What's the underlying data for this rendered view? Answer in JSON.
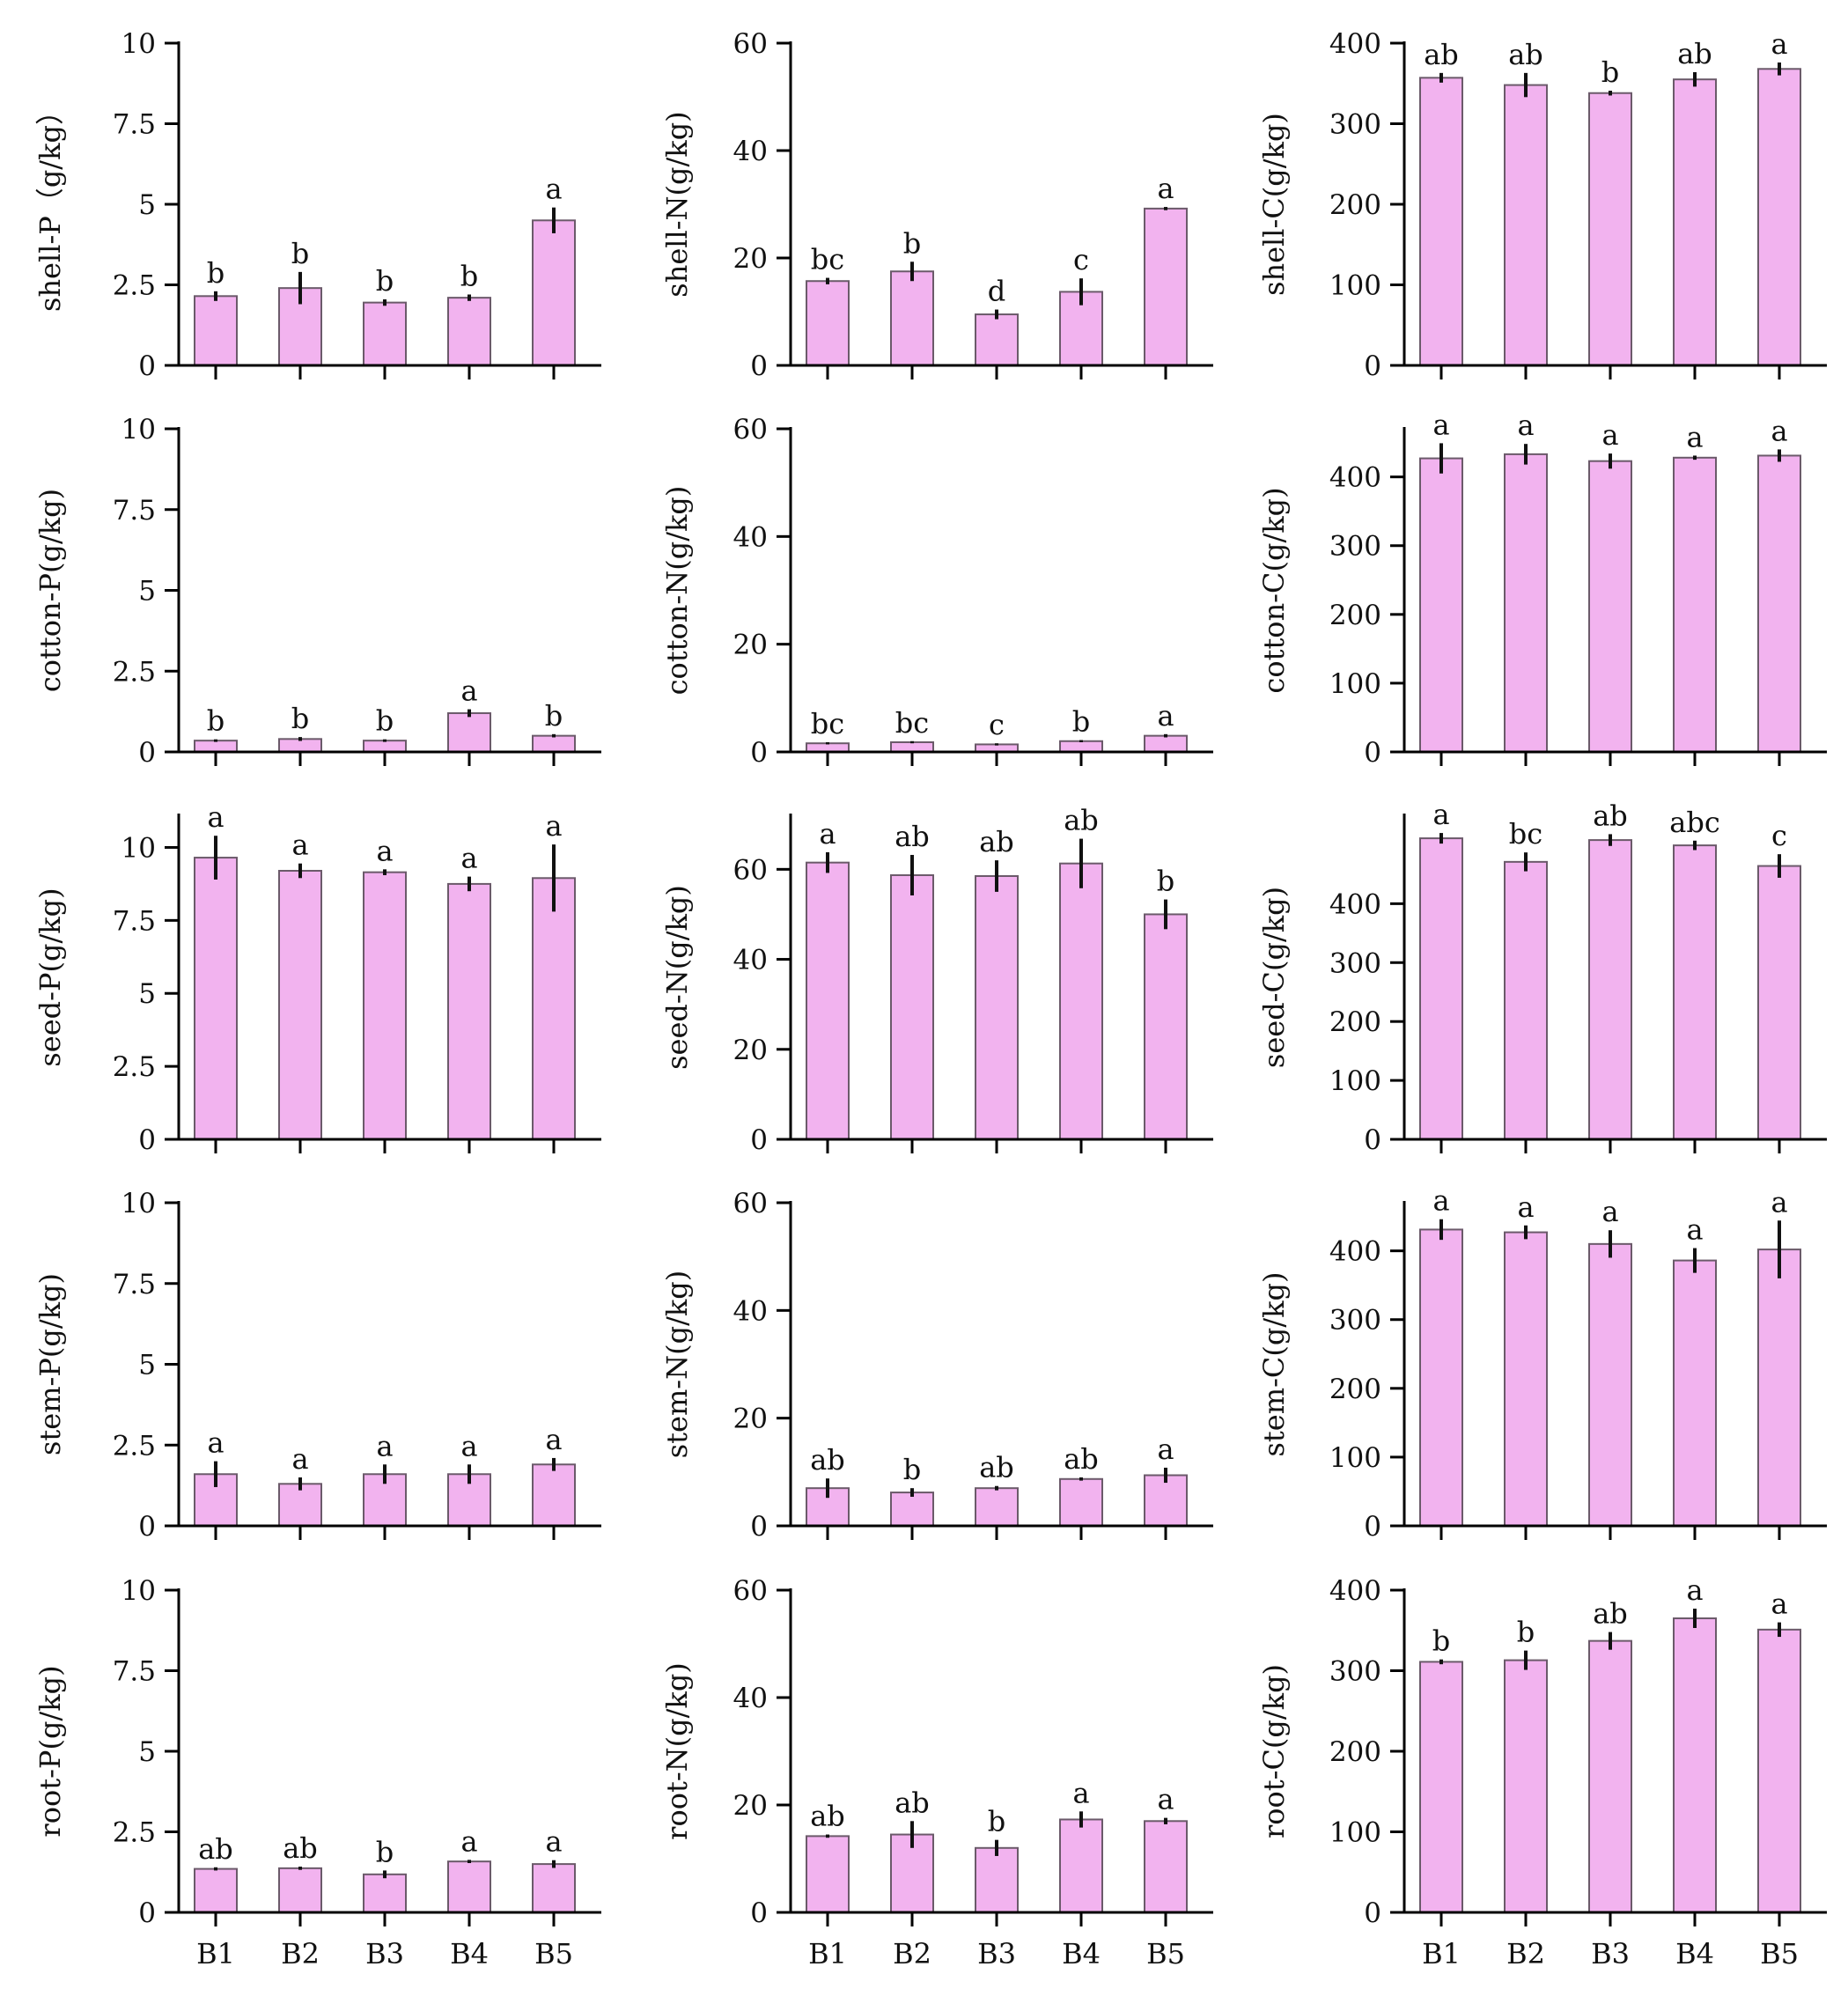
{
  "style": {
    "bar_fill": "#f2b3ef",
    "bar_stroke": "#6b5a6a",
    "axis_color": "#000000",
    "errorbar_color": "#111111"
  },
  "chart_data": [
    {
      "type": "bar",
      "ylabel": "shell-P（g/kg）",
      "yticks": [
        0,
        2.5,
        5,
        7.5,
        10
      ],
      "ytick_labels": [
        "0",
        "2.5",
        "5",
        "7.5",
        "10"
      ],
      "ylim": [
        0,
        10
      ],
      "categories": [
        "B1",
        "B2",
        "B3",
        "B4",
        "B5"
      ],
      "values": [
        2.15,
        2.4,
        1.95,
        2.1,
        4.5
      ],
      "errors": [
        0.15,
        0.5,
        0.1,
        0.1,
        0.4
      ],
      "letters": [
        "b",
        "b",
        "b",
        "b",
        "a"
      ],
      "show_xticklabels": false
    },
    {
      "type": "bar",
      "ylabel": "shell-N(g/kg)",
      "yticks": [
        0,
        20,
        40,
        60
      ],
      "ytick_labels": [
        "0",
        "20",
        "40",
        "60"
      ],
      "ylim": [
        0,
        60
      ],
      "categories": [
        "B1",
        "B2",
        "B3",
        "B4",
        "B5"
      ],
      "values": [
        15.7,
        17.5,
        9.5,
        13.7,
        29.2
      ],
      "errors": [
        0.6,
        1.8,
        0.9,
        2.5,
        0.3
      ],
      "letters": [
        "bc",
        "b",
        "d",
        "c",
        "a"
      ],
      "show_xticklabels": false
    },
    {
      "type": "bar",
      "ylabel": "shell-C(g/kg)",
      "yticks": [
        0,
        100,
        200,
        300,
        400
      ],
      "ytick_labels": [
        "0",
        "100",
        "200",
        "300",
        "400"
      ],
      "ylim": [
        0,
        400
      ],
      "categories": [
        "B1",
        "B2",
        "B3",
        "B4",
        "B5"
      ],
      "values": [
        357,
        348,
        338,
        355,
        368
      ],
      "errors": [
        6,
        15,
        3,
        9,
        8
      ],
      "letters": [
        "ab",
        "ab",
        "b",
        "ab",
        "a"
      ],
      "show_xticklabels": false
    },
    {
      "type": "bar",
      "ylabel": "cotton-P(g/kg)",
      "yticks": [
        0,
        2.5,
        5,
        7.5,
        10
      ],
      "ytick_labels": [
        "0",
        "2.5",
        "5",
        "7.5",
        "10"
      ],
      "ylim": [
        0,
        10
      ],
      "categories": [
        "B1",
        "B2",
        "B3",
        "B4",
        "B5"
      ],
      "values": [
        0.35,
        0.4,
        0.35,
        1.2,
        0.5
      ],
      "errors": [
        0.04,
        0.06,
        0.04,
        0.12,
        0.05
      ],
      "letters": [
        "b",
        "b",
        "b",
        "a",
        "b"
      ],
      "show_xticklabels": false
    },
    {
      "type": "bar",
      "ylabel": "cotton-N(g/kg)",
      "yticks": [
        0,
        20,
        40,
        60
      ],
      "ytick_labels": [
        "0",
        "20",
        "40",
        "60"
      ],
      "ylim": [
        0,
        60
      ],
      "categories": [
        "B1",
        "B2",
        "B3",
        "B4",
        "B5"
      ],
      "values": [
        1.6,
        1.8,
        1.4,
        2.0,
        3.0
      ],
      "errors": [
        0.2,
        0.2,
        0.2,
        0.2,
        0.3
      ],
      "letters": [
        "bc",
        "bc",
        "c",
        "b",
        "a"
      ],
      "show_xticklabels": false
    },
    {
      "type": "bar",
      "ylabel": "cotton-C(g/kg)",
      "yticks": [
        0,
        100,
        200,
        300,
        400
      ],
      "ytick_labels": [
        "0",
        "100",
        "200",
        "300",
        "400"
      ],
      "ylim": [
        0,
        470
      ],
      "categories": [
        "B1",
        "B2",
        "B3",
        "B4",
        "B5"
      ],
      "values": [
        427,
        433,
        423,
        428,
        431
      ],
      "errors": [
        22,
        15,
        11,
        3,
        9
      ],
      "letters": [
        "a",
        "a",
        "a",
        "a",
        "a"
      ],
      "show_xticklabels": false
    },
    {
      "type": "bar",
      "ylabel": "seed-P(g/kg)",
      "yticks": [
        0,
        2.5,
        5,
        7.5,
        10
      ],
      "ytick_labels": [
        "0",
        "2.5",
        "5",
        "7.5",
        "10"
      ],
      "ylim": [
        0,
        11.1
      ],
      "categories": [
        "B1",
        "B2",
        "B3",
        "B4",
        "B5"
      ],
      "values": [
        9.65,
        9.2,
        9.15,
        8.75,
        8.95
      ],
      "errors": [
        0.75,
        0.25,
        0.1,
        0.25,
        1.15
      ],
      "letters": [
        "a",
        "a",
        "a",
        "a",
        "a"
      ],
      "show_xticklabels": false
    },
    {
      "type": "bar",
      "ylabel": "seed-N(g/kg)",
      "yticks": [
        0,
        20,
        40,
        60
      ],
      "ytick_labels": [
        "0",
        "20",
        "40",
        "60"
      ],
      "ylim": [
        0,
        72
      ],
      "categories": [
        "B1",
        "B2",
        "B3",
        "B4",
        "B5"
      ],
      "values": [
        61.5,
        58.7,
        58.5,
        61.3,
        50
      ],
      "errors": [
        2.3,
        4.5,
        3.5,
        5.5,
        3.3
      ],
      "letters": [
        "a",
        "ab",
        "ab",
        "ab",
        "b"
      ],
      "show_xticklabels": false
    },
    {
      "type": "bar",
      "ylabel": "seed-C(g/kg)",
      "yticks": [
        0,
        100,
        200,
        300,
        400
      ],
      "ytick_labels": [
        "0",
        "100",
        "200",
        "300",
        "400"
      ],
      "ylim": [
        0,
        550
      ],
      "categories": [
        "B1",
        "B2",
        "B3",
        "B4",
        "B5"
      ],
      "values": [
        511,
        471,
        508,
        499,
        464
      ],
      "errors": [
        9,
        16,
        10,
        8,
        20
      ],
      "letters": [
        "a",
        "bc",
        "ab",
        "abc",
        "c"
      ],
      "show_xticklabels": false
    },
    {
      "type": "bar",
      "ylabel": "stem-P(g/kg)",
      "yticks": [
        0,
        2.5,
        5,
        7.5,
        10
      ],
      "ytick_labels": [
        "0",
        "2.5",
        "5",
        "7.5",
        "10"
      ],
      "ylim": [
        0,
        10
      ],
      "categories": [
        "B1",
        "B2",
        "B3",
        "B4",
        "B5"
      ],
      "values": [
        1.6,
        1.3,
        1.6,
        1.6,
        1.9
      ],
      "errors": [
        0.4,
        0.2,
        0.3,
        0.3,
        0.2
      ],
      "letters": [
        "a",
        "a",
        "a",
        "a",
        "a"
      ],
      "show_xticklabels": false
    },
    {
      "type": "bar",
      "ylabel": "stem-N(g/kg)",
      "yticks": [
        0,
        20,
        40,
        60
      ],
      "ytick_labels": [
        "0",
        "20",
        "40",
        "60"
      ],
      "ylim": [
        0,
        60
      ],
      "categories": [
        "B1",
        "B2",
        "B3",
        "B4",
        "B5"
      ],
      "values": [
        7.0,
        6.2,
        7.0,
        8.7,
        9.4
      ],
      "errors": [
        1.8,
        0.8,
        0.4,
        0.3,
        1.4
      ],
      "letters": [
        "ab",
        "b",
        "ab",
        "ab",
        "a"
      ],
      "show_xticklabels": false
    },
    {
      "type": "bar",
      "ylabel": "stem-C(g/kg)",
      "yticks": [
        0,
        100,
        200,
        300,
        400
      ],
      "ytick_labels": [
        "0",
        "100",
        "200",
        "300",
        "400"
      ],
      "ylim": [
        0,
        470
      ],
      "categories": [
        "B1",
        "B2",
        "B3",
        "B4",
        "B5"
      ],
      "values": [
        431,
        427,
        410,
        386,
        402
      ],
      "errors": [
        15,
        10,
        20,
        18,
        42
      ],
      "letters": [
        "a",
        "a",
        "a",
        "a",
        "a"
      ],
      "show_xticklabels": false
    },
    {
      "type": "bar",
      "ylabel": "root-P(g/kg)",
      "yticks": [
        0,
        2.5,
        5,
        7.5,
        10
      ],
      "ytick_labels": [
        "0",
        "2.5",
        "5",
        "7.5",
        "10"
      ],
      "ylim": [
        0,
        10
      ],
      "categories": [
        "B1",
        "B2",
        "B3",
        "B4",
        "B5"
      ],
      "values": [
        1.35,
        1.37,
        1.18,
        1.58,
        1.5
      ],
      "errors": [
        0.05,
        0.05,
        0.12,
        0.05,
        0.12
      ],
      "letters": [
        "ab",
        "ab",
        "b",
        "a",
        "a"
      ],
      "show_xticklabels": true
    },
    {
      "type": "bar",
      "ylabel": "root-N(g/kg)",
      "yticks": [
        0,
        20,
        40,
        60
      ],
      "ytick_labels": [
        "0",
        "20",
        "40",
        "60"
      ],
      "ylim": [
        0,
        60
      ],
      "categories": [
        "B1",
        "B2",
        "B3",
        "B4",
        "B5"
      ],
      "values": [
        14.2,
        14.5,
        12,
        17.3,
        17
      ],
      "errors": [
        0.3,
        2.5,
        1.5,
        1.5,
        0.6
      ],
      "letters": [
        "ab",
        "ab",
        "b",
        "a",
        "a"
      ],
      "show_xticklabels": true
    },
    {
      "type": "bar",
      "ylabel": "root-C(g/kg)",
      "yticks": [
        0,
        100,
        200,
        300,
        400
      ],
      "ytick_labels": [
        "0",
        "100",
        "200",
        "300",
        "400"
      ],
      "ylim": [
        0,
        400
      ],
      "categories": [
        "B1",
        "B2",
        "B3",
        "B4",
        "B5"
      ],
      "values": [
        311,
        313,
        337,
        365,
        351
      ],
      "errors": [
        3,
        12,
        11,
        12,
        9
      ],
      "letters": [
        "b",
        "b",
        "ab",
        "a",
        "a"
      ],
      "show_xticklabels": true
    }
  ]
}
